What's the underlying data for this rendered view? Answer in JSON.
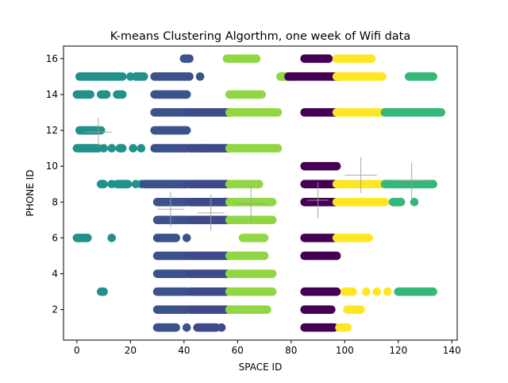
{
  "chart_data": {
    "type": "scatter",
    "title": "K-means Clustering Algorthm, one week of Wifi data",
    "xlabel": "SPACE ID",
    "ylabel": "PHONE ID",
    "xlim": [
      -5,
      142
    ],
    "ylim": [
      0.3,
      16.7
    ],
    "xticks": [
      0,
      20,
      40,
      60,
      80,
      100,
      120,
      140
    ],
    "yticks": [
      2,
      4,
      6,
      8,
      10,
      12,
      14,
      16
    ],
    "xtick_labels": [
      "0",
      "20",
      "40",
      "60",
      "80",
      "100",
      "120",
      "140"
    ],
    "ytick_labels": [
      "2",
      "4",
      "6",
      "8",
      "10",
      "12",
      "14",
      "16"
    ],
    "grid": false,
    "legend": "none",
    "palette": [
      "#440154",
      "#3b528b",
      "#21918c",
      "#35b779",
      "#90d743",
      "#fde725"
    ],
    "clusters": [
      {
        "color": "#21918c",
        "rows": [
          {
            "y": 15,
            "segments": [
              [
                1,
                16
              ],
              [
                22,
                25
              ]
            ],
            "dots": [
              17,
              20,
              24
            ]
          },
          {
            "y": 14,
            "segments": [
              [
                0,
                5
              ],
              [
                9,
                11
              ],
              [
                15,
                17
              ]
            ],
            "dots": []
          },
          {
            "y": 12,
            "segments": [
              [
                1,
                9
              ]
            ],
            "dots": []
          },
          {
            "y": 11,
            "segments": [
              [
                0,
                8
              ],
              [
                16,
                17
              ]
            ],
            "dots": [
              10,
              13,
              21,
              24
            ]
          },
          {
            "y": 9,
            "segments": [
              [
                9,
                10
              ],
              [
                15,
                19
              ]
            ],
            "dots": [
              13,
              22,
              24
            ]
          },
          {
            "y": 6,
            "segments": [
              [
                0,
                4
              ]
            ],
            "dots": [
              13
            ]
          },
          {
            "y": 3,
            "segments": [
              [
                9,
                10
              ]
            ],
            "dots": []
          }
        ]
      },
      {
        "color": "#3b528b",
        "rows": [
          {
            "y": 16,
            "segments": [
              [
                40,
                42
              ]
            ],
            "dots": []
          },
          {
            "y": 15,
            "segments": [
              [
                29,
                42
              ]
            ],
            "dots": [
              46
            ]
          },
          {
            "y": 14,
            "segments": [
              [
                29,
                41
              ]
            ],
            "dots": []
          },
          {
            "y": 13,
            "segments": [
              [
                29,
                41
              ]
            ],
            "dots": []
          },
          {
            "y": 12,
            "segments": [
              [
                29,
                41
              ]
            ],
            "dots": []
          },
          {
            "y": 11,
            "segments": [
              [
                29,
                41
              ]
            ],
            "dots": []
          },
          {
            "y": 9,
            "segments": [
              [
                25,
                41
              ]
            ],
            "dots": []
          },
          {
            "y": 8,
            "segments": [
              [
                30,
                41
              ]
            ],
            "dots": []
          },
          {
            "y": 7,
            "segments": [
              [
                30,
                41
              ]
            ],
            "dots": []
          },
          {
            "y": 6,
            "segments": [
              [
                30,
                37
              ]
            ],
            "dots": [
              41
            ]
          },
          {
            "y": 5,
            "segments": [
              [
                30,
                41
              ]
            ],
            "dots": []
          },
          {
            "y": 4,
            "segments": [
              [
                30,
                41
              ]
            ],
            "dots": []
          },
          {
            "y": 3,
            "segments": [
              [
                30,
                41
              ]
            ],
            "dots": []
          },
          {
            "y": 2,
            "segments": [
              [
                30,
                41
              ]
            ],
            "dots": []
          },
          {
            "y": 1,
            "segments": [
              [
                30,
                37
              ]
            ],
            "dots": [
              41
            ]
          }
        ]
      },
      {
        "color": "#3e4a89",
        "rows": [
          {
            "y": 13,
            "segments": [
              [
                42,
                57
              ]
            ],
            "dots": []
          },
          {
            "y": 11,
            "segments": [
              [
                42,
                56
              ]
            ],
            "dots": [
              47
            ]
          },
          {
            "y": 9,
            "segments": [
              [
                42,
                56
              ]
            ],
            "dots": []
          },
          {
            "y": 8,
            "segments": [
              [
                42,
                56
              ]
            ],
            "dots": []
          },
          {
            "y": 7,
            "segments": [
              [
                42,
                56
              ]
            ],
            "dots": []
          },
          {
            "y": 5,
            "segments": [
              [
                42,
                56
              ]
            ],
            "dots": []
          },
          {
            "y": 4,
            "segments": [
              [
                42,
                56
              ]
            ],
            "dots": []
          },
          {
            "y": 3,
            "segments": [
              [
                42,
                56
              ]
            ],
            "dots": []
          },
          {
            "y": 2,
            "segments": [
              [
                42,
                56
              ]
            ],
            "dots": []
          },
          {
            "y": 1,
            "segments": [
              [
                45,
                52
              ]
            ],
            "dots": [
              54
            ]
          }
        ]
      },
      {
        "color": "#90d743",
        "rows": [
          {
            "y": 16,
            "segments": [
              [
                56,
                67
              ]
            ],
            "dots": []
          },
          {
            "y": 15,
            "segments": [
              [
                76,
                81
              ]
            ],
            "dots": []
          },
          {
            "y": 14,
            "segments": [
              [
                57,
                69
              ]
            ],
            "dots": []
          },
          {
            "y": 13,
            "segments": [
              [
                57,
                75
              ]
            ],
            "dots": []
          },
          {
            "y": 11,
            "segments": [
              [
                57,
                75
              ]
            ],
            "dots": []
          },
          {
            "y": 9,
            "segments": [
              [
                57,
                68
              ]
            ],
            "dots": []
          },
          {
            "y": 8,
            "segments": [
              [
                57,
                73
              ]
            ],
            "dots": []
          },
          {
            "y": 7,
            "segments": [
              [
                57,
                73
              ]
            ],
            "dots": []
          },
          {
            "y": 6,
            "segments": [
              [
                62,
                70
              ]
            ],
            "dots": []
          },
          {
            "y": 5,
            "segments": [
              [
                57,
                70
              ]
            ],
            "dots": []
          },
          {
            "y": 4,
            "segments": [
              [
                57,
                73
              ]
            ],
            "dots": []
          },
          {
            "y": 3,
            "segments": [
              [
                57,
                73
              ]
            ],
            "dots": []
          },
          {
            "y": 2,
            "segments": [
              [
                57,
                71
              ]
            ],
            "dots": []
          }
        ]
      },
      {
        "color": "#440154",
        "rows": [
          {
            "y": 16,
            "segments": [
              [
                85,
                94
              ]
            ],
            "dots": []
          },
          {
            "y": 15,
            "segments": [
              [
                79,
                98
              ]
            ],
            "dots": []
          },
          {
            "y": 13,
            "segments": [
              [
                85,
                97
              ]
            ],
            "dots": []
          },
          {
            "y": 10,
            "segments": [
              [
                85,
                97
              ]
            ],
            "dots": []
          },
          {
            "y": 9,
            "segments": [
              [
                85,
                97
              ]
            ],
            "dots": []
          },
          {
            "y": 8,
            "segments": [
              [
                85,
                97
              ]
            ],
            "dots": []
          },
          {
            "y": 6,
            "segments": [
              [
                85,
                96
              ]
            ],
            "dots": []
          },
          {
            "y": 5,
            "segments": [
              [
                85,
                97
              ]
            ],
            "dots": []
          },
          {
            "y": 3,
            "segments": [
              [
                85,
                97
              ]
            ],
            "dots": []
          },
          {
            "y": 2,
            "segments": [
              [
                85,
                95
              ]
            ],
            "dots": []
          },
          {
            "y": 1,
            "segments": [
              [
                85,
                96
              ]
            ],
            "dots": []
          }
        ]
      },
      {
        "color": "#fde725",
        "rows": [
          {
            "y": 16,
            "segments": [
              [
                97,
                110
              ]
            ],
            "dots": []
          },
          {
            "y": 15,
            "segments": [
              [
                97,
                114
              ]
            ],
            "dots": []
          },
          {
            "y": 13,
            "segments": [
              [
                97,
                114
              ]
            ],
            "dots": []
          },
          {
            "y": 9,
            "segments": [
              [
                97,
                114
              ]
            ],
            "dots": []
          },
          {
            "y": 8,
            "segments": [
              [
                97,
                115
              ]
            ],
            "dots": []
          },
          {
            "y": 6,
            "segments": [
              [
                97,
                109
              ]
            ],
            "dots": []
          },
          {
            "y": 3,
            "segments": [
              [
                100,
                103
              ]
            ],
            "dots": [
              108,
              112,
              116
            ]
          },
          {
            "y": 2,
            "segments": [
              [
                101,
                106
              ]
            ],
            "dots": []
          },
          {
            "y": 1,
            "segments": [
              [
                98,
                101
              ]
            ],
            "dots": []
          }
        ]
      },
      {
        "color": "#35b779",
        "rows": [
          {
            "y": 15,
            "segments": [
              [
                124,
                133
              ]
            ],
            "dots": []
          },
          {
            "y": 13,
            "segments": [
              [
                115,
                136
              ]
            ],
            "dots": []
          },
          {
            "y": 9,
            "segments": [
              [
                115,
                133
              ]
            ],
            "dots": []
          },
          {
            "y": 8,
            "segments": [
              [
                118,
                121
              ]
            ],
            "dots": [
              126
            ]
          },
          {
            "y": 3,
            "segments": [
              [
                120,
                133
              ]
            ],
            "dots": []
          }
        ]
      }
    ],
    "centroids": [
      {
        "x": 8,
        "y": 11.9,
        "dx": 5,
        "dy": 0.8
      },
      {
        "x": 35,
        "y": 7.6,
        "dx": 5,
        "dy": 1.0
      },
      {
        "x": 50,
        "y": 7.4,
        "dx": 5,
        "dy": 1.0
      },
      {
        "x": 65,
        "y": 7.9,
        "dx": 6,
        "dy": 1.0
      },
      {
        "x": 90,
        "y": 8.1,
        "dx": 4,
        "dy": 1.0
      },
      {
        "x": 106,
        "y": 9.5,
        "dx": 6,
        "dy": 1.0
      },
      {
        "x": 125,
        "y": 9.2,
        "dx": 6,
        "dy": 1.0
      }
    ]
  }
}
